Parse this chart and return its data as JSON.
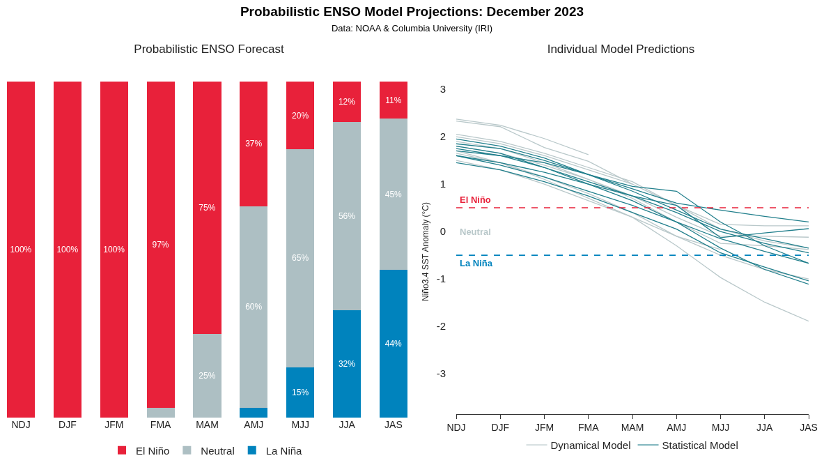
{
  "chart_data": [
    {
      "type": "other",
      "title": "Probabilistic ENSO Model Projections: December 2023",
      "subtitle": "Data: NOAA & Columbia University (IRI)"
    },
    {
      "type": "bar",
      "title": "Probabilistic ENSO Forecast",
      "stacked": true,
      "legend": "bottom",
      "categories": [
        "NDJ",
        "DJF",
        "JFM",
        "FMA",
        "MAM",
        "AMJ",
        "MJJ",
        "JJA",
        "JAS"
      ],
      "series": [
        {
          "name": "La Niña",
          "color": "#0083bd",
          "values": [
            0,
            0,
            0,
            0,
            0,
            3,
            15,
            32,
            44
          ],
          "value_labels": [
            null,
            null,
            null,
            null,
            null,
            null,
            "15%",
            "32%",
            "44%"
          ]
        },
        {
          "name": "Neutral",
          "color": "#adbfc3",
          "values": [
            0,
            0,
            0,
            3,
            25,
            60,
            65,
            56,
            45
          ],
          "value_labels": [
            null,
            null,
            null,
            null,
            "25%",
            "60%",
            "65%",
            "56%",
            "45%"
          ]
        },
        {
          "name": "El Niño",
          "color": "#e8213a",
          "values": [
            100,
            100,
            100,
            97,
            75,
            37,
            20,
            12,
            11
          ],
          "value_labels": [
            "100%",
            "100%",
            "100%",
            "97%",
            "75%",
            "37%",
            "20%",
            "12%",
            "11%"
          ]
        }
      ]
    },
    {
      "type": "line",
      "title": "Individual Model Predictions",
      "ylabel": "Niño3.4 SST Anomaly (°C)",
      "legend": "bottom",
      "ylim": [
        -3.85,
        3
      ],
      "yticks": [
        -3,
        -2,
        -1,
        0,
        1,
        2,
        3
      ],
      "categories": [
        "NDJ",
        "DJF",
        "JFM",
        "FMA",
        "MAM",
        "AMJ",
        "MJJ",
        "JJA",
        "JAS"
      ],
      "ref_lines": [
        {
          "axis": "y",
          "value": 0.5,
          "label": "El Niño",
          "color": "#e8213a",
          "line_style": "dashed"
        },
        {
          "axis": "y",
          "value": -0.5,
          "label": "La Niña",
          "color": "#0083bd",
          "line_style": "dashed"
        }
      ],
      "annotations": [
        "Neutral"
      ],
      "series": [
        {
          "name": "Dynamical Model",
          "color": "#b9c8ca",
          "values": [
            2.37,
            2.24,
            1.96,
            1.62,
            null,
            null,
            null,
            null,
            null
          ]
        },
        {
          "color": "#b9c8ca",
          "values": [
            2.33,
            2.21,
            1.77,
            1.48,
            1.0,
            null,
            null,
            null,
            null
          ]
        },
        {
          "color": "#b9c8ca",
          "values": [
            1.7,
            1.45,
            1.1,
            0.7,
            0.3,
            -0.3,
            -0.97,
            -1.49,
            -1.89
          ]
        },
        {
          "color": "#b9c8ca",
          "values": [
            2.0,
            1.85,
            1.6,
            1.3,
            1.0,
            0.55,
            0.15,
            0.12,
            0.12
          ]
        },
        {
          "color": "#b9c8ca",
          "values": [
            1.8,
            1.65,
            1.4,
            1.1,
            0.75,
            0.3,
            -0.1,
            -0.1,
            -0.12
          ]
        },
        {
          "color": "#b9c8ca",
          "values": [
            1.9,
            1.75,
            1.45,
            1.1,
            0.7,
            0.2,
            -0.25,
            -0.3,
            -0.38
          ]
        },
        {
          "color": "#b9c8ca",
          "values": [
            1.5,
            1.3,
            1.0,
            0.65,
            0.3,
            -0.1,
            -0.5,
            -0.8,
            -1.0
          ]
        },
        {
          "color": "#b9c8ca",
          "values": [
            1.65,
            1.45,
            1.15,
            0.8,
            0.4,
            -0.1,
            -0.38,
            null,
            null
          ]
        },
        {
          "color": "#b9c8ca",
          "values": [
            2.05,
            1.9,
            1.65,
            1.35,
            1.05,
            0.55,
            0.05,
            -0.2,
            -0.35
          ]
        },
        {
          "name": "Statistical Model",
          "color": "#217f8c",
          "values": [
            1.85,
            1.75,
            1.5,
            1.2,
            0.9,
            0.6,
            0.45,
            0.32,
            0.2
          ]
        },
        {
          "color": "#217f8c",
          "values": [
            1.6,
            1.45,
            1.25,
            1.0,
            0.75,
            0.55,
            -0.13,
            -0.03,
            0.06
          ]
        },
        {
          "color": "#217f8c",
          "values": [
            1.95,
            1.8,
            1.55,
            1.2,
            0.85,
            0.45,
            0.05,
            -0.15,
            -0.35
          ]
        },
        {
          "color": "#217f8c",
          "values": [
            1.75,
            1.6,
            1.35,
            1.05,
            0.75,
            0.4,
            0.0,
            -0.25,
            -0.45
          ]
        },
        {
          "color": "#217f8c",
          "values": [
            1.6,
            1.4,
            1.15,
            0.85,
            0.55,
            0.2,
            -0.15,
            -0.42,
            -0.67
          ]
        },
        {
          "color": "#217f8c",
          "values": [
            1.45,
            1.3,
            1.05,
            0.75,
            0.4,
            0.05,
            -0.45,
            -0.75,
            -1.04
          ]
        },
        {
          "color": "#217f8c",
          "values": [
            1.8,
            1.65,
            1.35,
            1.0,
            0.65,
            0.2,
            -0.35,
            -0.8,
            -1.11
          ]
        },
        {
          "color": "#217f8c",
          "values": [
            1.7,
            1.6,
            1.45,
            1.2,
            0.95,
            0.85,
            0.2,
            -0.3,
            -0.67
          ]
        }
      ]
    }
  ]
}
